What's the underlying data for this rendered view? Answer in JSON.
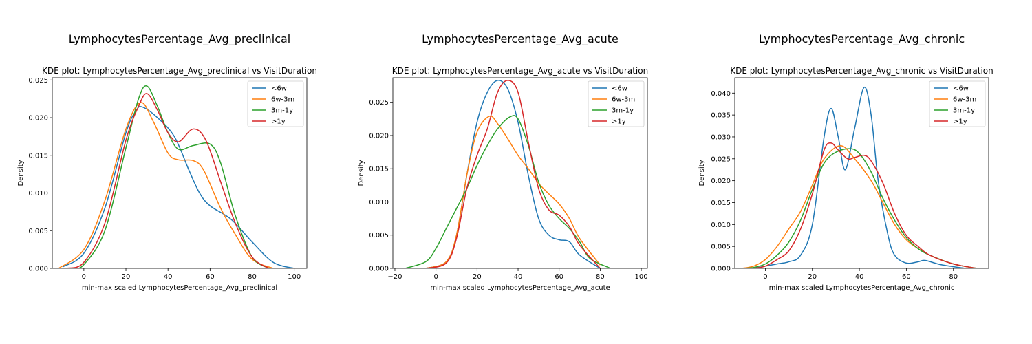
{
  "figure": {
    "colors": {
      "<6w": "#1f77b4",
      "6w-3m": "#ff7f0e",
      "3m-1y": "#2ca02c",
      ">1y": "#d62728"
    }
  },
  "chart_data": [
    {
      "type": "line",
      "suptitle": "LymphocytesPercentage_Avg_preclinical",
      "title": "KDE plot:  LymphocytesPercentage_Avg_preclinical vs VisitDuration",
      "xlabel": "min-max scaled LymphocytesPercentage_Avg_preclinical",
      "ylabel": "Density",
      "xlim": [
        -15,
        106
      ],
      "ylim": [
        0,
        0.0253
      ],
      "xticks": [
        0,
        20,
        40,
        60,
        80,
        100
      ],
      "yticks": [
        0.0,
        0.005,
        0.01,
        0.015,
        0.02,
        0.025
      ],
      "ytick_labels": [
        "0.000",
        "0.005",
        "0.010",
        "0.015",
        "0.020",
        "0.025"
      ],
      "legend": {
        "position": "top-right",
        "entries": [
          "<6w",
          "6w-3m",
          "3m-1y",
          ">1y"
        ]
      },
      "series": [
        {
          "name": "<6w",
          "x": [
            -10,
            0,
            10,
            20,
            25,
            28,
            35,
            43,
            50,
            55,
            60,
            70,
            80,
            90,
            100
          ],
          "y": [
            0.0002,
            0.002,
            0.008,
            0.018,
            0.021,
            0.0214,
            0.02,
            0.0175,
            0.013,
            0.01,
            0.0083,
            0.0065,
            0.0035,
            0.0008,
            0.0
          ]
        },
        {
          "name": "6w-3m",
          "x": [
            -12,
            0,
            10,
            20,
            27,
            33,
            40,
            45,
            52,
            57,
            65,
            72,
            80,
            90
          ],
          "y": [
            0.0,
            0.0025,
            0.009,
            0.0185,
            0.022,
            0.0195,
            0.0153,
            0.0144,
            0.0143,
            0.013,
            0.008,
            0.0045,
            0.0012,
            0.0
          ]
        },
        {
          "name": "3m-1y",
          "x": [
            -5,
            0,
            10,
            20,
            26,
            30,
            35,
            40,
            45,
            52,
            60,
            65,
            72,
            80,
            88
          ],
          "y": [
            0.0,
            0.0005,
            0.005,
            0.016,
            0.0225,
            0.0242,
            0.0215,
            0.018,
            0.0158,
            0.0163,
            0.0165,
            0.014,
            0.007,
            0.0015,
            0.0
          ]
        },
        {
          "name": ">1y",
          "x": [
            -8,
            0,
            10,
            20,
            26,
            30,
            35,
            40,
            45,
            52,
            58,
            65,
            72,
            80,
            88
          ],
          "y": [
            0.0,
            0.0008,
            0.006,
            0.017,
            0.0215,
            0.0232,
            0.021,
            0.018,
            0.0168,
            0.0185,
            0.017,
            0.0115,
            0.006,
            0.0015,
            0.0
          ]
        }
      ]
    },
    {
      "type": "line",
      "suptitle": "LymphocytesPercentage_Avg_acute",
      "title": "KDE plot:  LymphocytesPercentage_Avg_acute vs VisitDuration",
      "xlabel": "min-max scaled LymphocytesPercentage_Avg_acute",
      "ylabel": "Density",
      "xlim": [
        -21,
        103
      ],
      "ylim": [
        0,
        0.0287
      ],
      "xticks": [
        -20,
        0,
        20,
        40,
        60,
        80,
        100
      ],
      "xtick_labels": [
        "−20",
        "0",
        "20",
        "40",
        "60",
        "80",
        "100"
      ],
      "yticks": [
        0.0,
        0.005,
        0.01,
        0.015,
        0.02,
        0.025
      ],
      "ytick_labels": [
        "0.000",
        "0.005",
        "0.010",
        "0.015",
        "0.020",
        "0.025"
      ],
      "legend": {
        "position": "top-right",
        "entries": [
          "<6w",
          "6w-3m",
          "3m-1y",
          ">1y"
        ]
      },
      "series": [
        {
          "name": "<6w",
          "x": [
            -5,
            5,
            10,
            15,
            20,
            25,
            30,
            35,
            40,
            45,
            50,
            55,
            60,
            65,
            70,
            80
          ],
          "y": [
            0.0,
            0.001,
            0.005,
            0.014,
            0.022,
            0.0265,
            0.0283,
            0.027,
            0.022,
            0.014,
            0.0075,
            0.005,
            0.0043,
            0.004,
            0.002,
            0.0
          ]
        },
        {
          "name": "6w-3m",
          "x": [
            -5,
            5,
            10,
            15,
            20,
            26,
            30,
            35,
            40,
            45,
            50,
            55,
            60,
            65,
            70,
            80
          ],
          "y": [
            0.0,
            0.001,
            0.005,
            0.014,
            0.0205,
            0.0229,
            0.0218,
            0.0195,
            0.017,
            0.015,
            0.0128,
            0.0112,
            0.0097,
            0.0075,
            0.0045,
            0.0005
          ]
        },
        {
          "name": "3m-1y",
          "x": [
            -15,
            -5,
            0,
            5,
            10,
            15,
            20,
            25,
            30,
            36,
            40,
            45,
            50,
            55,
            60,
            65,
            70,
            75,
            85
          ],
          "y": [
            0.0,
            0.001,
            0.003,
            0.006,
            0.009,
            0.012,
            0.0155,
            0.0185,
            0.021,
            0.0228,
            0.0225,
            0.0185,
            0.013,
            0.0095,
            0.0075,
            0.006,
            0.004,
            0.0015,
            0.0
          ]
        },
        {
          "name": ">1y",
          "x": [
            -5,
            5,
            10,
            15,
            20,
            25,
            30,
            35,
            40,
            45,
            50,
            55,
            60,
            65,
            70,
            80
          ],
          "y": [
            0.0,
            0.0008,
            0.0045,
            0.012,
            0.017,
            0.021,
            0.0265,
            0.0283,
            0.0265,
            0.019,
            0.012,
            0.0088,
            0.008,
            0.0063,
            0.0035,
            0.0
          ]
        }
      ]
    },
    {
      "type": "line",
      "suptitle": "LymphocytesPercentage_Avg_chronic",
      "title": "KDE plot:  LymphocytesPercentage_Avg_chronic vs VisitDuration",
      "xlabel": "min-max scaled LymphocytesPercentage_Avg_chronic",
      "ylabel": "Density",
      "xlim": [
        -13,
        95
      ],
      "ylim": [
        0,
        0.0435
      ],
      "xticks": [
        0,
        20,
        40,
        60,
        80
      ],
      "yticks": [
        0.0,
        0.005,
        0.01,
        0.015,
        0.02,
        0.025,
        0.03,
        0.035,
        0.04
      ],
      "ytick_labels": [
        "0.000",
        "0.005",
        "0.010",
        "0.015",
        "0.020",
        "0.025",
        "0.030",
        "0.035",
        "0.040"
      ],
      "legend": {
        "position": "top-right",
        "entries": [
          "<6w",
          "6w-3m",
          "3m-1y",
          ">1y"
        ]
      },
      "series": [
        {
          "name": "<6w",
          "x": [
            -5,
            0,
            5,
            10,
            15,
            20,
            25,
            28,
            31,
            34,
            38,
            42,
            45,
            48,
            52,
            55,
            60,
            65,
            68,
            75,
            85
          ],
          "y": [
            0.0,
            0.0005,
            0.001,
            0.0015,
            0.003,
            0.01,
            0.03,
            0.0365,
            0.03,
            0.0225,
            0.032,
            0.0413,
            0.035,
            0.02,
            0.008,
            0.003,
            0.0012,
            0.0015,
            0.0018,
            0.0008,
            0.0
          ]
        },
        {
          "name": "6w-3m",
          "x": [
            -10,
            -5,
            0,
            5,
            10,
            15,
            20,
            25,
            32,
            38,
            45,
            50,
            55,
            60,
            65,
            70,
            80,
            90
          ],
          "y": [
            0.0,
            0.0005,
            0.002,
            0.005,
            0.009,
            0.013,
            0.019,
            0.025,
            0.028,
            0.025,
            0.02,
            0.015,
            0.01,
            0.0065,
            0.0045,
            0.003,
            0.001,
            0.0
          ]
        },
        {
          "name": "3m-1y",
          "x": [
            -10,
            -5,
            0,
            5,
            10,
            15,
            20,
            25,
            30,
            36,
            40,
            45,
            50,
            55,
            60,
            65,
            70,
            80,
            90
          ],
          "y": [
            0.0,
            0.0002,
            0.001,
            0.003,
            0.006,
            0.011,
            0.018,
            0.024,
            0.0265,
            0.0273,
            0.0262,
            0.022,
            0.016,
            0.011,
            0.007,
            0.0045,
            0.003,
            0.001,
            0.0
          ]
        },
        {
          "name": ">1y",
          "x": [
            -5,
            0,
            5,
            10,
            15,
            20,
            25,
            28,
            31,
            35,
            38,
            42,
            45,
            50,
            55,
            60,
            65,
            70,
            80,
            90
          ],
          "y": [
            0.0,
            0.0005,
            0.002,
            0.004,
            0.009,
            0.017,
            0.027,
            0.0286,
            0.027,
            0.025,
            0.0253,
            0.0258,
            0.0245,
            0.0195,
            0.0125,
            0.0075,
            0.005,
            0.003,
            0.001,
            0.0
          ]
        }
      ]
    }
  ]
}
